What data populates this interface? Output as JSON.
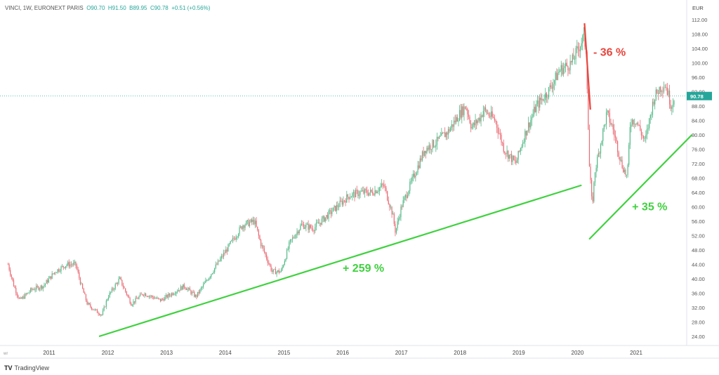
{
  "header": {
    "symbol": "VINCI, 1W, EURONEXT PARIS",
    "open": "O90.70",
    "high": "H91.50",
    "low": "B89.95",
    "close": "C90.78",
    "change": "+0.51 (+0.56%)"
  },
  "brand": {
    "logo": "TV",
    "name": "TradingView"
  },
  "chart_data": {
    "type": "candlestick",
    "title": "VINCI, 1W, EURONEXT PARIS",
    "currency": "EUR",
    "ylim": [
      22,
      114
    ],
    "y_ticks": [
      "24.00",
      "28.00",
      "32.00",
      "36.00",
      "40.00",
      "44.00",
      "48.00",
      "52.00",
      "56.00",
      "60.00",
      "64.00",
      "68.00",
      "72.00",
      "76.00",
      "80.00",
      "84.00",
      "88.00",
      "92.00",
      "96.00",
      "100.00",
      "104.00",
      "108.00",
      "112.00"
    ],
    "x_ticks": [
      "2011",
      "2012",
      "2013",
      "2014",
      "2015",
      "2016",
      "2017",
      "2018",
      "2019",
      "2020",
      "2021"
    ],
    "x_axis_start_label": "wr",
    "last_price": "90.78",
    "colors": {
      "up": "#53b987",
      "down": "#eb6a74",
      "last": "#26a69a",
      "trend_up": "#3fd13f",
      "trend_down": "#e8453c"
    },
    "price_path": [
      [
        2010.3,
        44
      ],
      [
        2010.4,
        38
      ],
      [
        2010.5,
        34
      ],
      [
        2010.7,
        37
      ],
      [
        2010.9,
        38
      ],
      [
        2011.1,
        42
      ],
      [
        2011.3,
        44
      ],
      [
        2011.45,
        44
      ],
      [
        2011.55,
        38
      ],
      [
        2011.65,
        33
      ],
      [
        2011.8,
        31
      ],
      [
        2011.9,
        30
      ],
      [
        2012.0,
        35
      ],
      [
        2012.2,
        40
      ],
      [
        2012.4,
        33
      ],
      [
        2012.6,
        36
      ],
      [
        2012.9,
        34
      ],
      [
        2013.0,
        35
      ],
      [
        2013.3,
        38
      ],
      [
        2013.5,
        35
      ],
      [
        2013.7,
        40
      ],
      [
        2013.9,
        45
      ],
      [
        2014.1,
        50
      ],
      [
        2014.3,
        55
      ],
      [
        2014.5,
        56
      ],
      [
        2014.6,
        50
      ],
      [
        2014.8,
        42
      ],
      [
        2014.95,
        42
      ],
      [
        2015.1,
        50
      ],
      [
        2015.3,
        55
      ],
      [
        2015.5,
        54
      ],
      [
        2015.7,
        57
      ],
      [
        2015.9,
        60
      ],
      [
        2016.1,
        63
      ],
      [
        2016.3,
        64
      ],
      [
        2016.5,
        64
      ],
      [
        2016.7,
        66
      ],
      [
        2016.85,
        58
      ],
      [
        2016.9,
        53
      ],
      [
        2017.0,
        60
      ],
      [
        2017.2,
        68
      ],
      [
        2017.4,
        76
      ],
      [
        2017.6,
        78
      ],
      [
        2017.8,
        81
      ],
      [
        2018.0,
        86
      ],
      [
        2018.1,
        88
      ],
      [
        2018.2,
        82
      ],
      [
        2018.35,
        85
      ],
      [
        2018.4,
        87
      ],
      [
        2018.6,
        84
      ],
      [
        2018.75,
        76
      ],
      [
        2018.95,
        72
      ],
      [
        2019.1,
        80
      ],
      [
        2019.3,
        88
      ],
      [
        2019.5,
        92
      ],
      [
        2019.7,
        98
      ],
      [
        2019.9,
        100
      ],
      [
        2020.1,
        107
      ],
      [
        2020.15,
        104
      ],
      [
        2020.2,
        72
      ],
      [
        2020.25,
        60
      ],
      [
        2020.3,
        70
      ],
      [
        2020.4,
        78
      ],
      [
        2020.5,
        86
      ],
      [
        2020.6,
        82
      ],
      [
        2020.75,
        72
      ],
      [
        2020.85,
        68
      ],
      [
        2020.9,
        84
      ],
      [
        2021.0,
        84
      ],
      [
        2021.15,
        78
      ],
      [
        2021.3,
        90
      ],
      [
        2021.4,
        93
      ],
      [
        2021.5,
        94
      ],
      [
        2021.6,
        88
      ],
      [
        2021.65,
        90.78
      ]
    ],
    "annotations": [
      {
        "text": "- 36 %",
        "color": "red",
        "line": [
          [
            2020.12,
            111
          ],
          [
            2020.22,
            87
          ]
        ],
        "at": [
          2020.27,
          102
        ]
      },
      {
        "text": "+ 259 %",
        "color": "green",
        "line": [
          [
            2011.85,
            24
          ],
          [
            2020.07,
            66
          ]
        ],
        "at": [
          2016.0,
          42
        ]
      },
      {
        "text": "+ 35 %",
        "color": "green",
        "line": [
          [
            2020.2,
            51
          ],
          [
            2021.95,
            80
          ]
        ],
        "at": [
          2020.93,
          59
        ]
      }
    ]
  }
}
